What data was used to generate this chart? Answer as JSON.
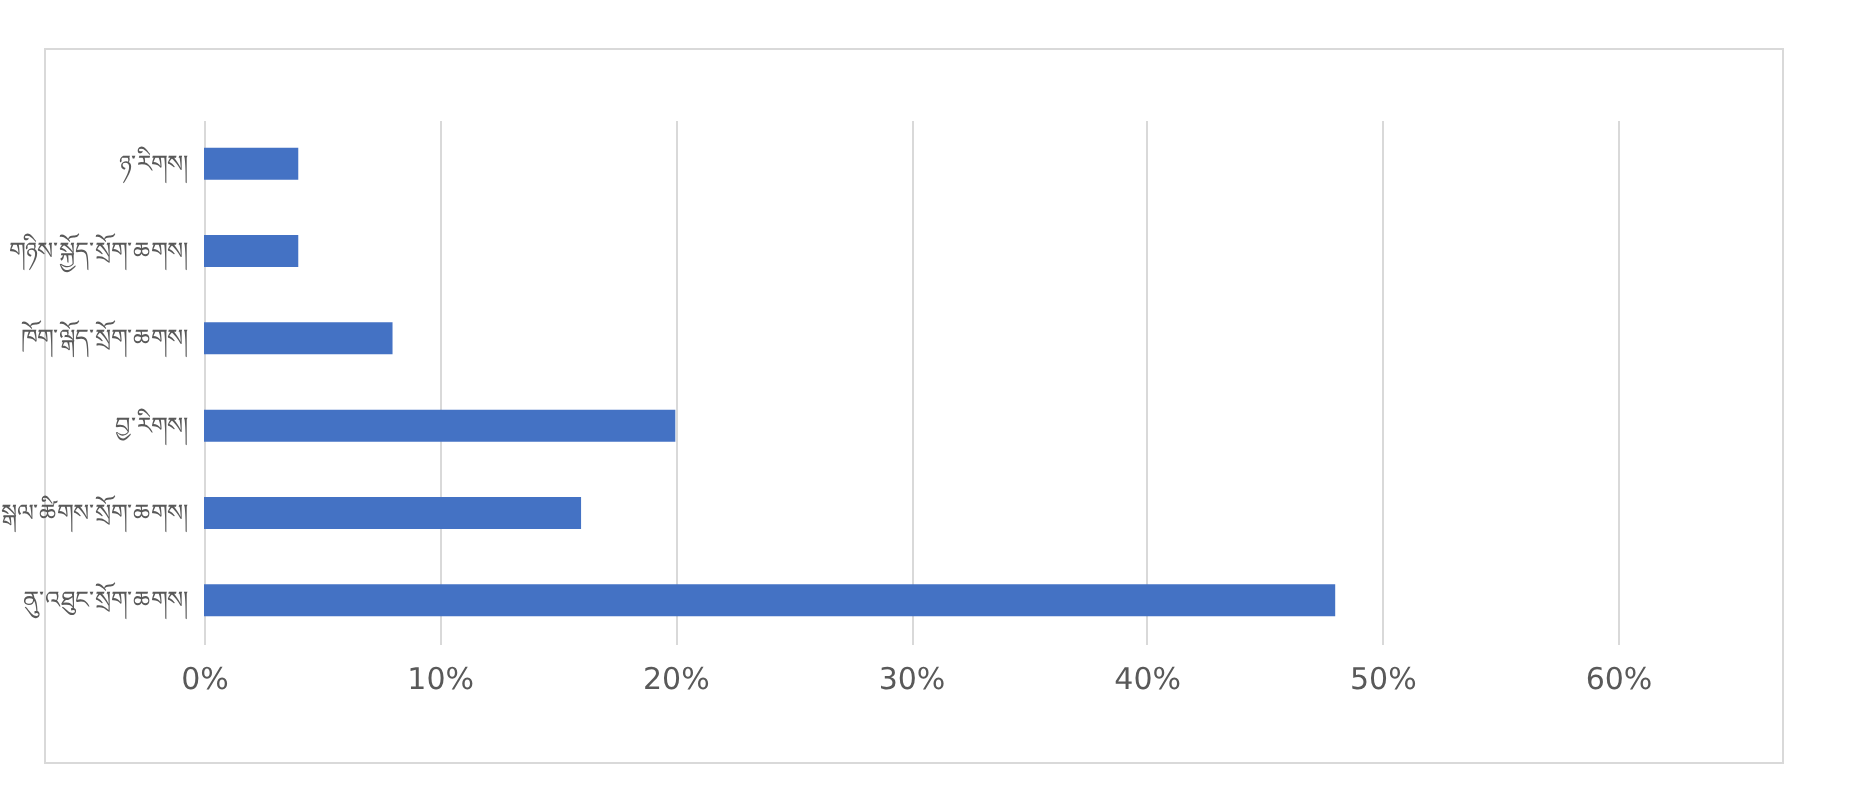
{
  "chart_data": {
    "type": "bar",
    "orientation": "horizontal",
    "categories": [
      "ཉ་རིགས།",
      "གཉིས་སྐྱོད་སྲོག་ཆགས།",
      "ཁོག་ལྒོད་སྲོག་ཆགས།",
      "བྱ་རིགས།",
      "སྒལ་ཚིགས་སྲོག་ཆགས།",
      "ནུ་འཐུང་སྲོག་ཆགས།"
    ],
    "values": [
      4,
      4,
      8,
      20,
      16,
      48
    ],
    "color": "#4472c4",
    "xlim": [
      0,
      60
    ],
    "xticks": [
      {
        "value": 0,
        "label": "0%"
      },
      {
        "value": 10,
        "label": "10%"
      },
      {
        "value": 20,
        "label": "20%"
      },
      {
        "value": 30,
        "label": "30%"
      },
      {
        "value": 40,
        "label": "40%"
      },
      {
        "value": 50,
        "label": "50%"
      },
      {
        "value": 60,
        "label": "60%"
      }
    ],
    "grid": "x"
  }
}
